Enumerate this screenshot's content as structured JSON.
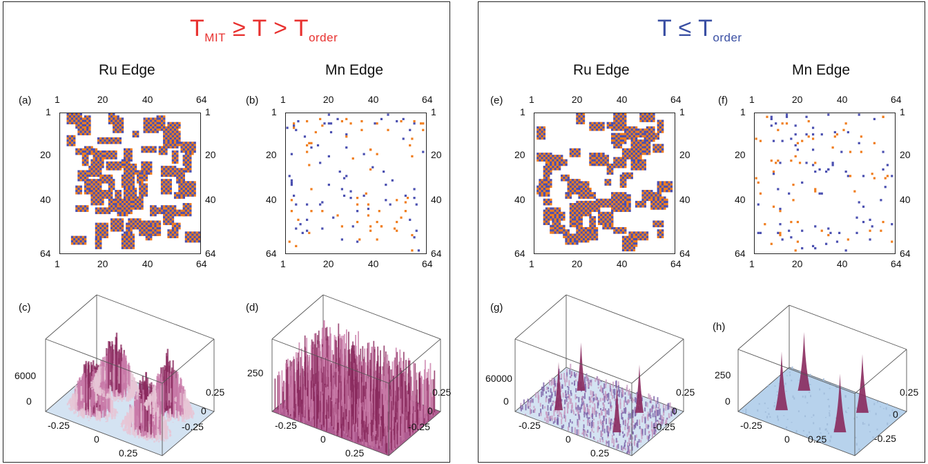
{
  "figure": {
    "groups": [
      {
        "id": "left",
        "title_main": "T",
        "title_sub1": "MIT",
        "title_mid": " ≥ T > T",
        "title_sub2": "order",
        "title_color": "#e8312f",
        "columns": [
          "Ru Edge",
          "Mn Edge"
        ]
      },
      {
        "id": "right",
        "title_main": "T ≤ T",
        "title_sub1": "order",
        "title_color": "#3a4fa3",
        "columns": [
          "Ru Edge",
          "Mn Edge"
        ]
      }
    ],
    "map_panels": [
      {
        "label": "(a)",
        "name": "ru-edge-map-a"
      },
      {
        "label": "(b)",
        "name": "mn-edge-map-b"
      },
      {
        "label": "(e)",
        "name": "ru-edge-map-e"
      },
      {
        "label": "(f)",
        "name": "mn-edge-map-f"
      }
    ],
    "map_axis_ticks": [
      "1",
      "20",
      "40",
      "64"
    ],
    "surface_panels": [
      {
        "label": "(c)",
        "z_tick": "6000",
        "z_zero": "0"
      },
      {
        "label": "(d)",
        "z_tick": "250",
        "z_zero": ""
      },
      {
        "label": "(g)",
        "z_tick": "60000",
        "z_zero": "0"
      },
      {
        "label": "(h)",
        "z_tick": "250",
        "z_zero": "0"
      }
    ],
    "surface_axis_ticks": {
      "x": [
        "-0.25",
        "0",
        "0.25"
      ],
      "y": [
        "0.25",
        "0",
        "-0.25"
      ]
    },
    "colors": {
      "orange": "#f07d1e",
      "blue": "#4a4fb0",
      "surface_peak": "#8a2a5e",
      "surface_mid": "#c87aa8",
      "surface_base": "#b9d3ea"
    }
  }
}
